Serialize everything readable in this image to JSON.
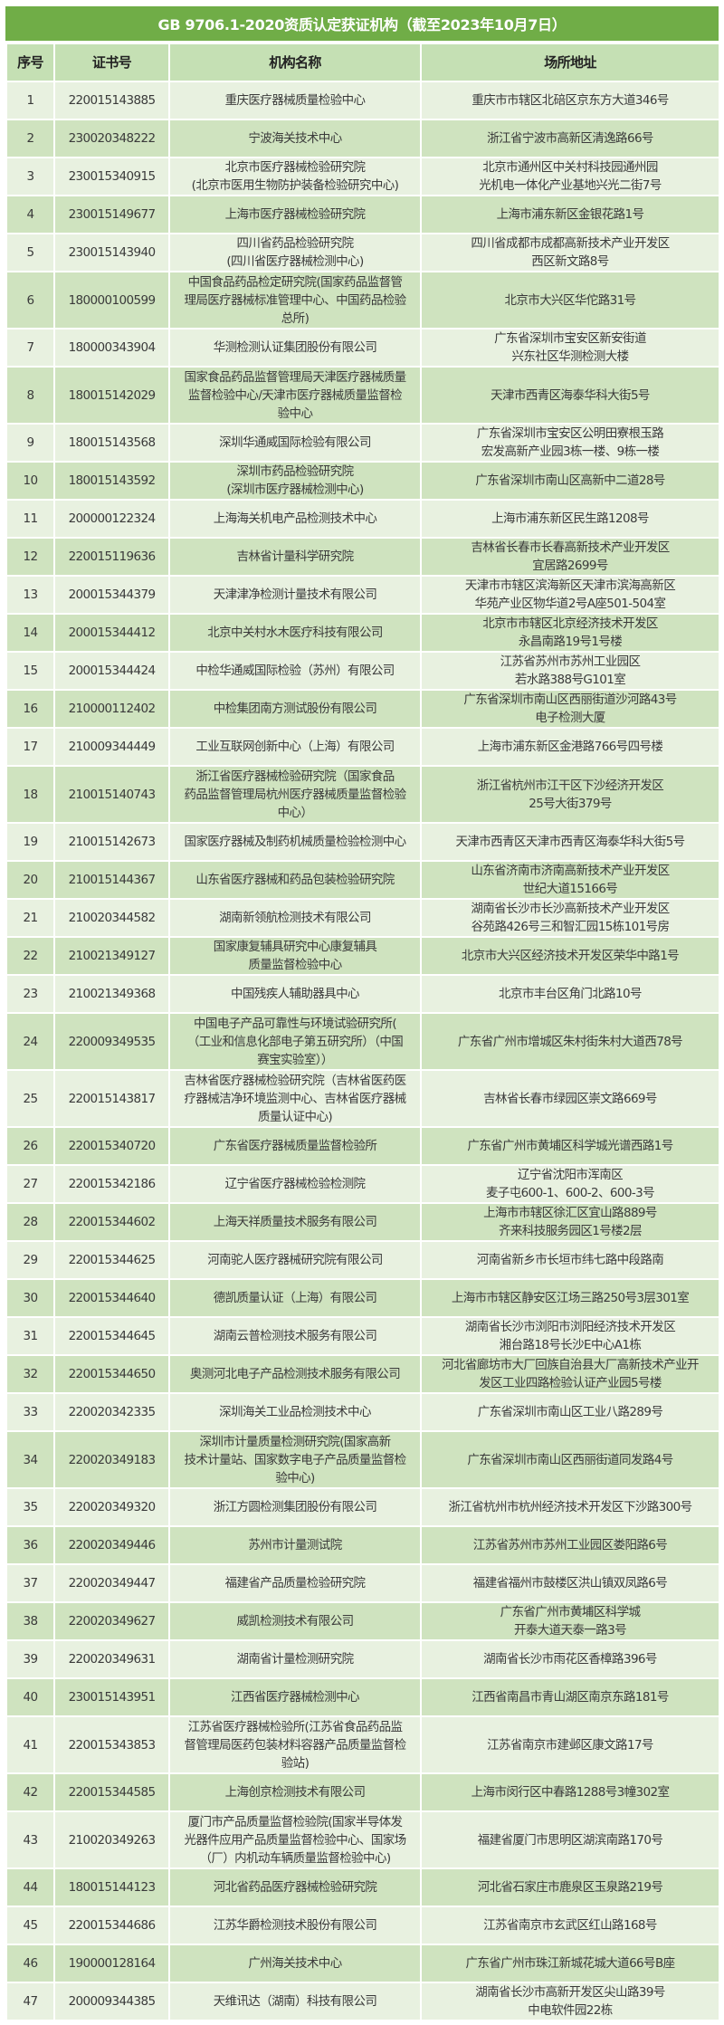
{
  "title": "GB 9706.1-2020资质认定获证机构（截至2023年10月7日）",
  "colors": {
    "title_bg": "#70ad47",
    "header_bg": "#c5e0b4",
    "row_light": "#e8f1e0",
    "row_dark": "#cfe3bf"
  },
  "headers": [
    "序号",
    "证书号",
    "机构名称",
    "场所地址"
  ],
  "rows": [
    [
      "1",
      "220015143885",
      "重庆医疗器械质量检验中心",
      "重庆市市辖区北碚区京东方大道346号"
    ],
    [
      "2",
      "230020348222",
      "宁波海关技术中心",
      "浙江省宁波市高新区清逸路66号"
    ],
    [
      "3",
      "230015340915",
      "北京市医疗器械检验研究院\n(北京市医用生物防护装备检验研究中心)",
      "北京市通州区中关村科技园通州园\n光机电一体化产业基地兴光二街7号"
    ],
    [
      "4",
      "230015149677",
      "上海市医疗器械检验研究院",
      "上海市浦东新区金银花路1号"
    ],
    [
      "5",
      "230015143940",
      "四川省药品检验研究院\n(四川省医疗器械检测中心)",
      "四川省成都市成都高新技术产业开发区\n西区新文路8号"
    ],
    [
      "6",
      "180000100599",
      "中国食品药品检定研究院(国家药品监督管\n理局医疗器械标准管理中心、中国药品检验\n总所)",
      "北京市大兴区华佗路31号"
    ],
    [
      "7",
      "180000343904",
      "华测检测认证集团股份有限公司",
      "广东省深圳市宝安区新安街道\n兴东社区华测检测大楼"
    ],
    [
      "8",
      "180015142029",
      "国家食品药品监督管理局天津医疗器械质量\n监督检验中心/天津市医疗器械质量监督检\n验中心",
      "天津市西青区海泰华科大街5号"
    ],
    [
      "9",
      "180015143568",
      "深圳华通威国际检验有限公司",
      "广东省深圳市宝安区公明田寮根玉路\n宏发高新产业园3栋一楼、9栋一楼"
    ],
    [
      "10",
      "180015143592",
      "深圳市药品检验研究院\n(深圳市医疗器械检测中心)",
      "广东省深圳市南山区高新中二道28号"
    ],
    [
      "11",
      "200000122324",
      "上海海关机电产品检测技术中心",
      "上海市浦东新区民生路1208号"
    ],
    [
      "12",
      "220015119636",
      "吉林省计量科学研究院",
      "吉林省长春市长春高新技术产业开发区\n宜居路2699号"
    ],
    [
      "13",
      "200015344379",
      "天津津净检测计量技术有限公司",
      "天津市市辖区滨海新区天津市滨海高新区\n华苑产业区物华道2号A座501-504室"
    ],
    [
      "14",
      "200015344412",
      "北京中关村水木医疗科技有限公司",
      "北京市市辖区北京经济技术开发区\n永昌南路19号1号楼"
    ],
    [
      "15",
      "200015344424",
      "中检华通威国际检验（苏州）有限公司",
      "江苏省苏州市苏州工业园区\n若水路388号G101室"
    ],
    [
      "16",
      "210000112402",
      "中检集团南方测试股份有限公司",
      "广东省深圳市南山区西丽街道沙河路43号\n电子检测大厦"
    ],
    [
      "17",
      "210009344449",
      "工业互联网创新中心（上海）有限公司",
      "上海市浦东新区金港路766号四号楼"
    ],
    [
      "18",
      "210015140743",
      "浙江省医疗器械检验研究院（国家食品\n药品监督管理局杭州医疗器械质量监督检验\n中心）",
      "浙江省杭州市江干区下沙经济开发区\n25号大街379号"
    ],
    [
      "19",
      "210015142673",
      "国家医疗器械及制药机械质量检验检测中心",
      "天津市西青区天津市西青区海泰华科大街5号"
    ],
    [
      "20",
      "210015144367",
      "山东省医疗器械和药品包装检验研究院",
      "山东省济南市济南高新技术产业开发区\n世纪大道15166号"
    ],
    [
      "21",
      "210020344582",
      "湖南新领航检测技术有限公司",
      "湖南省长沙市长沙高新技术产业开发区\n谷苑路426号三和智汇园15栋101号房"
    ],
    [
      "22",
      "210021349127",
      "国家康复辅具研究中心康复辅具\n质量监督检验中心",
      "北京市大兴区经济技术开发区荣华中路1号"
    ],
    [
      "23",
      "210021349368",
      "中国残疾人辅助器具中心",
      "北京市丰台区角门北路10号"
    ],
    [
      "24",
      "220009349535",
      "中国电子产品可靠性与环境试验研究所(\n（工业和信息化部电子第五研究所）（中国\n赛宝实验室））",
      "广东省广州市增城区朱村街朱村大道西78号"
    ],
    [
      "25",
      "220015143817",
      "吉林省医疗器械检验研究院（吉林省医药医\n疗器械洁净环境监测中心、吉林省医疗器械\n质量认证中心)",
      "吉林省长春市绿园区崇文路669号"
    ],
    [
      "26",
      "220015340720",
      "广东省医疗器械质量监督检验所",
      "广东省广州市黄埔区科学城光谱西路1号"
    ],
    [
      "27",
      "220015342186",
      "辽宁省医疗器械检验检测院",
      "辽宁省沈阳市浑南区\n麦子屯600-1、600-2、600-3号"
    ],
    [
      "28",
      "220015344602",
      "上海天祥质量技术服务有限公司",
      "上海市市辖区徐汇区宜山路889号\n齐来科技服务园区1号楼2层"
    ],
    [
      "29",
      "220015344625",
      "河南驼人医疗器械研究院有限公司",
      "河南省新乡市长垣市纬七路中段路南"
    ],
    [
      "30",
      "220015344640",
      "德凯质量认证（上海）有限公司",
      "上海市市辖区静安区江场三路250号3层301室"
    ],
    [
      "31",
      "220015344645",
      "湖南云普检测技术服务有限公司",
      "湖南省长沙市浏阳市浏阳经济技术开发区\n湘台路18号长沙E中心A1栋"
    ],
    [
      "32",
      "220015344650",
      "奥测河北电子产品检测技术服务有限公司",
      "河北省廊坊市大厂回族自治县大厂高新技术产业开\n发区工业四路检验认证产业园5号楼"
    ],
    [
      "33",
      "220020342335",
      "深圳海关工业品检测技术中心",
      "广东省深圳市南山区工业八路289号"
    ],
    [
      "34",
      "220020349183",
      "深圳市计量质量检测研究院(国家高新\n技术计量站、国家数字电子产品质量监督检\n验中心)",
      "广东省深圳市南山区西丽街道同发路4号"
    ],
    [
      "35",
      "220020349320",
      "浙江方圆检测集团股份有限公司",
      "浙江省杭州市杭州经济技术开发区下沙路300号"
    ],
    [
      "36",
      "220020349446",
      "苏州市计量测试院",
      "江苏省苏州市苏州工业园区娄阳路6号"
    ],
    [
      "37",
      "220020349447",
      "福建省产品质量检验研究院",
      "福建省福州市鼓楼区洪山镇双凤路6号"
    ],
    [
      "38",
      "220020349627",
      "威凯检测技术有限公司",
      "广东省广州市黄埔区科学城\n开泰大道天泰一路3号"
    ],
    [
      "39",
      "220020349631",
      "湖南省计量检测研究院",
      "湖南省长沙市雨花区香樟路396号"
    ],
    [
      "40",
      "230015143951",
      "江西省医疗器械检测中心",
      "江西省南昌市青山湖区南京东路181号"
    ],
    [
      "41",
      "220015343853",
      "江苏省医疗器械检验所(江苏省食品药品监\n督管理局医药包装材料容器产品质量监督检\n验站)",
      "江苏省南京市建邺区康文路17号"
    ],
    [
      "42",
      "220015344585",
      "上海创京检测技术有限公司",
      "上海市闵行区中春路1288号3幢302室"
    ],
    [
      "43",
      "210020349263",
      "厦门市产品质量监督检验院(国家半导体发\n光器件应用产品质量监督检验中心、国家场\n（厂）内机动车辆质量监督检验中心)",
      "福建省厦门市思明区湖滨南路170号"
    ],
    [
      "44",
      "180015144123",
      "河北省药品医疗器械检验研究院",
      "河北省石家庄市鹿泉区玉泉路219号"
    ],
    [
      "45",
      "220015344686",
      "江苏华爵检测技术股份有限公司",
      "江苏省南京市玄武区红山路168号"
    ],
    [
      "46",
      "190000128164",
      "广州海关技术中心",
      "广东省广州市珠江新城花城大道66号B座"
    ],
    [
      "47",
      "200009344385",
      "天维讯达（湖南）科技有限公司",
      "湖南省长沙市高新开发区尖山路39号\n中电软件园22栋"
    ]
  ]
}
